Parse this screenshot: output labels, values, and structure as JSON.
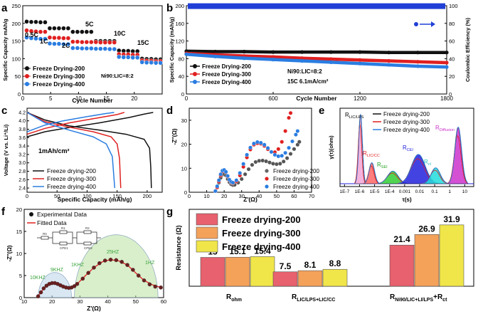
{
  "colors": {
    "s200": "#111111",
    "s300": "#e02020",
    "s400": "#2a7de1",
    "ce": "#1f3fd6",
    "bar200": "#e8616e",
    "bar300": "#f4a15a",
    "bar400": "#f0e64a"
  },
  "chart_data": [
    {
      "panel": "a",
      "type": "scatter",
      "title": "",
      "xlabel": "Cycle Number",
      "ylabel": "Specific Capacity mAh/g",
      "xlim": [
        0,
        25
      ],
      "ylim": [
        0,
        250
      ],
      "xticks": [
        "0",
        "5",
        "10",
        "15",
        "20"
      ],
      "yticks": [
        "0",
        "50",
        "100",
        "150",
        "200",
        "250"
      ],
      "rate_labels": [
        "0.5C",
        "1C",
        "2C",
        "5C",
        "10C",
        "15C"
      ],
      "note": "Ni90:LIC=8:2",
      "series": [
        {
          "name": "Freeze Drying-200",
          "values": [
            205,
            204,
            204,
            203,
            203,
            186,
            186,
            186,
            186,
            186,
            176,
            176,
            176,
            176,
            176,
            150,
            150,
            150,
            150,
            150,
            123,
            122,
            122,
            121,
            121,
            100,
            99,
            99,
            98,
            98
          ]
        },
        {
          "name": "Freeze Drying-300",
          "values": [
            180,
            178,
            177,
            176,
            176,
            160,
            159,
            159,
            158,
            158,
            148,
            148,
            147,
            147,
            147,
            147,
            146,
            146,
            146,
            146,
            113,
            112,
            112,
            111,
            111,
            95,
            94,
            94,
            93,
            93
          ]
        },
        {
          "name": "Freeze Drying-400",
          "values": [
            160,
            158,
            157,
            156,
            156,
            143,
            142,
            142,
            141,
            141,
            130,
            130,
            129,
            129,
            129,
            128,
            128,
            128,
            127,
            127,
            105,
            104,
            104,
            103,
            103,
            90,
            89,
            89,
            88,
            88
          ]
        }
      ]
    },
    {
      "panel": "b",
      "type": "scatter",
      "xlabel": "Cycle Number",
      "ylabel": "Specific Capacity (mAh/g)",
      "y2label": "Coulombic Efficiency (%)",
      "xlim": [
        0,
        1800
      ],
      "ylim": [
        0,
        200
      ],
      "y2lim": [
        0,
        100
      ],
      "xticks": [
        "0",
        "600",
        "1200",
        "1800"
      ],
      "yticks": [
        "0",
        "40",
        "80",
        "120",
        "160",
        "200"
      ],
      "y2ticks": [
        "0",
        "20",
        "40",
        "60",
        "80",
        "100"
      ],
      "note1": "Ni90:LIC=8:2",
      "note2": "15C 6.1mA/cm²",
      "series": [
        {
          "name": "Freeze Drying-200",
          "x": [
            0,
            200,
            400,
            600,
            800,
            1000,
            1200,
            1400,
            1600,
            1800
          ],
          "values": [
            97,
            96,
            96,
            95,
            95,
            95,
            95,
            94,
            94,
            94
          ]
        },
        {
          "name": "Freeze Drying-300",
          "x": [
            0,
            200,
            400,
            600,
            800,
            1000,
            1200,
            1400,
            1600,
            1800
          ],
          "values": [
            92,
            89,
            86,
            84,
            81,
            79,
            77,
            75,
            73,
            71
          ]
        },
        {
          "name": "Freeze Drying-400",
          "x": [
            0,
            200,
            400,
            600,
            800,
            1000,
            1200,
            1400,
            1600,
            1800
          ],
          "values": [
            90,
            85,
            81,
            78,
            75,
            72,
            69,
            66,
            63,
            61
          ]
        },
        {
          "name": "Coulombic Efficiency",
          "x": [
            0,
            1800
          ],
          "values": [
            99.5,
            99.5
          ]
        }
      ]
    },
    {
      "panel": "c",
      "type": "line",
      "xlabel": "Specific Capacity (mAh/g)",
      "ylabel": "Voltage (V vs. Li⁺/Li)",
      "xlim": [
        0,
        225
      ],
      "ylim": [
        2.3,
        4.3
      ],
      "xticks": [
        "0",
        "50",
        "100",
        "150",
        "200"
      ],
      "yticks": [
        "2.4",
        "2.6",
        "2.8",
        "3.0",
        "3.2",
        "3.4",
        "3.6",
        "3.8",
        "4.0",
        "4.2"
      ],
      "note": "1mAh/cm²",
      "series": [
        {
          "name": "Freeze drying-200",
          "charge": [
            [
              0,
              3.62
            ],
            [
              30,
              3.74
            ],
            [
              70,
              3.84
            ],
            [
              120,
              3.95
            ],
            [
              170,
              4.08
            ],
            [
              195,
              4.16
            ],
            [
              210,
              4.2
            ]
          ],
          "discharge": [
            [
              0,
              4.2
            ],
            [
              30,
              4.02
            ],
            [
              70,
              3.88
            ],
            [
              120,
              3.78
            ],
            [
              165,
              3.68
            ],
            [
              195,
              3.56
            ],
            [
              204,
              3.35
            ],
            [
              206,
              2.9
            ],
            [
              207,
              2.4
            ]
          ]
        },
        {
          "name": "Freeze drying-300",
          "charge": [
            [
              0,
              3.68
            ],
            [
              30,
              3.82
            ],
            [
              70,
              3.95
            ],
            [
              110,
              4.05
            ],
            [
              150,
              4.15
            ],
            [
              162,
              4.2
            ]
          ],
          "discharge": [
            [
              0,
              4.2
            ],
            [
              30,
              3.98
            ],
            [
              70,
              3.85
            ],
            [
              110,
              3.74
            ],
            [
              140,
              3.62
            ],
            [
              150,
              3.45
            ],
            [
              154,
              3.1
            ],
            [
              156,
              2.4
            ]
          ]
        },
        {
          "name": "Freeze drying-400",
          "charge": [
            [
              0,
              3.74
            ],
            [
              30,
              3.9
            ],
            [
              60,
              4.0
            ],
            [
              100,
              4.1
            ],
            [
              130,
              4.17
            ],
            [
              145,
              4.2
            ]
          ],
          "discharge": [
            [
              0,
              4.2
            ],
            [
              30,
              3.95
            ],
            [
              70,
              3.78
            ],
            [
              110,
              3.62
            ],
            [
              132,
              3.45
            ],
            [
              142,
              3.15
            ],
            [
              146,
              2.4
            ]
          ]
        }
      ]
    },
    {
      "panel": "d",
      "type": "scatter",
      "xlabel": "Z'(Ω)",
      "ylabel": "-Z''(Ω)",
      "xlim": [
        0,
        70
      ],
      "ylim": [
        0,
        35
      ],
      "xticks": [
        "0",
        "10",
        "20",
        "30",
        "40",
        "50",
        "60",
        "70"
      ],
      "yticks": [
        "0",
        "10",
        "20",
        "30"
      ],
      "series": [
        {
          "name": "Freeze drying-200",
          "x": [
            15,
            16,
            17,
            18,
            19,
            20,
            21,
            22,
            23,
            24,
            25,
            26,
            28,
            30,
            32,
            34,
            36,
            38,
            40,
            42,
            44,
            46,
            48,
            50,
            52,
            54,
            56,
            58,
            60,
            62,
            63
          ],
          "values": [
            0.5,
            2,
            4,
            6,
            7.3,
            7.6,
            7,
            5.5,
            4.2,
            3.3,
            3,
            3.1,
            4,
            5.5,
            7.5,
            9.6,
            11.4,
            12.6,
            13.1,
            13.2,
            12.9,
            12.4,
            11.9,
            11.7,
            11.9,
            12.8,
            14.2,
            16,
            18,
            19.8,
            21
          ]
        },
        {
          "name": "Freeze drying-300",
          "x": [
            15,
            16,
            17,
            18,
            19,
            20,
            21,
            22,
            23,
            24,
            25,
            27,
            29,
            31,
            33,
            35,
            37,
            39,
            41,
            43,
            45,
            47,
            49,
            51,
            53,
            55,
            57,
            58
          ],
          "values": [
            0.5,
            2,
            4.5,
            7,
            8.7,
            9.2,
            8.4,
            6.6,
            5,
            4.1,
            3.8,
            4.5,
            7,
            10.6,
            14.5,
            17.8,
            19.8,
            20.4,
            20.2,
            19.3,
            17.9,
            16.8,
            16.7,
            18,
            21,
            25.5,
            31,
            33
          ]
        },
        {
          "name": "Freeze drying-400",
          "x": [
            15,
            16,
            17,
            18,
            19,
            20,
            21,
            22,
            23,
            24,
            25,
            27,
            29,
            31,
            33,
            35,
            37,
            39,
            41,
            43,
            45,
            47,
            49,
            51,
            53,
            55,
            57,
            59,
            61,
            62
          ],
          "values": [
            0.5,
            2.5,
            5,
            7.5,
            9,
            9.3,
            8.5,
            6.8,
            5.2,
            4.3,
            4,
            5,
            8,
            11.8,
            15.6,
            18.6,
            20.3,
            20.9,
            20.6,
            19.8,
            18.4,
            16.8,
            15.6,
            15,
            15.2,
            16.4,
            18.5,
            21.2,
            24,
            25.5
          ]
        }
      ]
    },
    {
      "panel": "e",
      "type": "area",
      "xlabel": "τ(s)",
      "ylabel": "γ(τ)(ohm)",
      "xticks": [
        "1E-7",
        "1E-6",
        "1E-5",
        "1E-4",
        "0.001",
        "0.01",
        "0.1",
        "1",
        "10"
      ],
      "peak_labels": {
        "lic": "R",
        "lic_sub": "LIC/LPS",
        "liccc": "R",
        "liccc_sub": "LIC/CC",
        "sei": "R",
        "sei_sub": "SEI",
        "cei": "R",
        "cei_sub": "CEI",
        "ct": "R",
        "ct_sub": "ct",
        "diff": "R",
        "diff_sub": "Diffusion"
      },
      "peaks": [
        {
          "label": "LIC/LPS",
          "log_tau": -5.95,
          "height": 16.5,
          "width": 0.12,
          "color": "#f2a6d6"
        },
        {
          "label": "LIC/CC",
          "log_tau": -5.2,
          "height": 5.0,
          "width": 0.18,
          "color": "#ff6666"
        },
        {
          "label": "SEI",
          "log_tau": -3.8,
          "height": 3.0,
          "width": 0.35,
          "color": "#33cc33"
        },
        {
          "label": "CEI",
          "log_tau": -2.1,
          "height": 7.0,
          "width": 0.45,
          "color": "#2222dd"
        },
        {
          "label": "ct",
          "log_tau": -0.95,
          "height": 3.8,
          "width": 0.3,
          "color": "#22dddd"
        },
        {
          "label": "Diffusion",
          "log_tau": 0.55,
          "height": 13.5,
          "width": 0.22,
          "color": "#cc33cc"
        }
      ],
      "series": [
        {
          "name": "Freeze drying-200"
        },
        {
          "name": "Freeze drying-300"
        },
        {
          "name": "Freeze drying-400"
        }
      ]
    },
    {
      "panel": "f",
      "type": "scatter",
      "xlabel": "Z'(Ω)",
      "ylabel": "-Z''(Ω)",
      "xlim": [
        10,
        60
      ],
      "ylim": [
        0,
        20
      ],
      "xticks": [
        "10",
        "20",
        "30",
        "40",
        "50",
        "60"
      ],
      "yticks": [
        "0",
        "5",
        "10",
        "15",
        "20"
      ],
      "freq_labels": [
        "10KHZ",
        "9KHZ",
        "1KHZ",
        "25HZ",
        "1HZ"
      ],
      "circuit_labels": [
        "R0",
        "R1",
        "CPE1",
        "R2",
        "CPE2"
      ],
      "series": [
        {
          "name": "Experimental Data",
          "x": [
            15,
            16,
            17,
            18,
            19,
            20,
            21,
            22,
            23,
            24,
            25,
            26,
            27,
            28,
            29,
            31,
            33,
            35,
            37,
            39,
            41,
            43,
            45,
            47,
            49,
            51,
            53,
            55,
            57,
            59
          ],
          "values": [
            0.3,
            1.2,
            2.1,
            2.7,
            3.1,
            3.3,
            3.3,
            3.1,
            2.8,
            2.5,
            2.3,
            2.2,
            2.3,
            2.6,
            3.1,
            4.3,
            5.6,
            6.8,
            7.8,
            8.4,
            8.6,
            8.5,
            8.1,
            7.4,
            6.3,
            5,
            3.9,
            3,
            2.5,
            2.3
          ]
        },
        {
          "name": "Fitted Data",
          "x": [
            15,
            17,
            19,
            21,
            23,
            25,
            27,
            29,
            32,
            35,
            38,
            41,
            44,
            47,
            50,
            53,
            56,
            59
          ],
          "values": [
            0.3,
            2.1,
            3.1,
            3.3,
            2.8,
            2.3,
            2.3,
            3.1,
            5,
            6.8,
            8.1,
            8.6,
            8.3,
            7.4,
            5.6,
            3.9,
            2.9,
            2.3
          ]
        }
      ]
    },
    {
      "panel": "g",
      "type": "bar",
      "ylabel": "Resistance (Ω)",
      "categories": [
        "R",
        "R",
        "R"
      ],
      "category_subs": [
        "ohm",
        "LIC/LPS+LIC/CC",
        "Ni90/LIC+LI/LPS"
      ],
      "category_suffix": [
        "",
        "",
        "+R"
      ],
      "category_suffix_sub": [
        "",
        "",
        "ct"
      ],
      "series": [
        {
          "name": "Freeze drying-200",
          "values": [
            15,
            7.5,
            21.4
          ]
        },
        {
          "name": "Freeze drying-300",
          "values": [
            15.1,
            8.1,
            26.9
          ]
        },
        {
          "name": "Freeze drying-400",
          "values": [
            15.4,
            8.8,
            31.9
          ]
        }
      ],
      "value_labels": [
        [
          "15",
          "7.5",
          "21.4"
        ],
        [
          "15.1",
          "8.1",
          "26.9"
        ],
        [
          "15.4",
          "8.8",
          "31.9"
        ]
      ],
      "ylim": [
        0,
        40
      ]
    }
  ],
  "panels": {
    "a": {
      "letter": "a",
      "xlabel": "Cycle Number",
      "ylabel": "Specific Capacity mAh/g",
      "note": "Ni90:LIC=8:2",
      "legend": [
        "Freeze Drying-200",
        "Freeze Drying-300",
        "Freeze Drying-400"
      ]
    },
    "b": {
      "letter": "b",
      "xlabel": "Cycle Number",
      "ylabel": "Specific Capacity (mAh/g)",
      "y2label": "Coulombic Efficiency (%)",
      "note1": "Ni90:LIC=8:2",
      "note2": "15C 6.1mA/cm²",
      "legend": [
        "Freeze Drying-200",
        "Freeze Drying-300",
        "Freeze Drying-400"
      ]
    },
    "c": {
      "letter": "c",
      "xlabel": "Specific Capacity (mAh/g)",
      "ylabel": "Voltage (V vs. Li⁺/Li)",
      "note": "1mAh/cm²",
      "legend": [
        "Freeze drying-200",
        "Freeze drying-300",
        "Freeze drying-400"
      ]
    },
    "d": {
      "letter": "d",
      "xlabel": "Z'(Ω)",
      "ylabel": "-Z''(Ω)",
      "legend": [
        "Freeze drying-200",
        "Freeze drying-300",
        "Freeze drying-400"
      ]
    },
    "e": {
      "letter": "e",
      "xlabel": "τ(s)",
      "ylabel": "γ(τ)(ohm)",
      "legend": [
        "Freeze drying-200",
        "Freeze drying-300",
        "Freeze drying-400"
      ]
    },
    "f": {
      "letter": "f",
      "xlabel": "Z'(Ω)",
      "ylabel": "-Z''(Ω)",
      "legend": [
        "Experimental Data",
        "Fitted Data"
      ]
    },
    "g": {
      "letter": "g",
      "ylabel": "Resistance (Ω)",
      "legend": [
        "Freeze drying-200",
        "Freeze drying-300",
        "Freeze drying-400"
      ]
    }
  }
}
